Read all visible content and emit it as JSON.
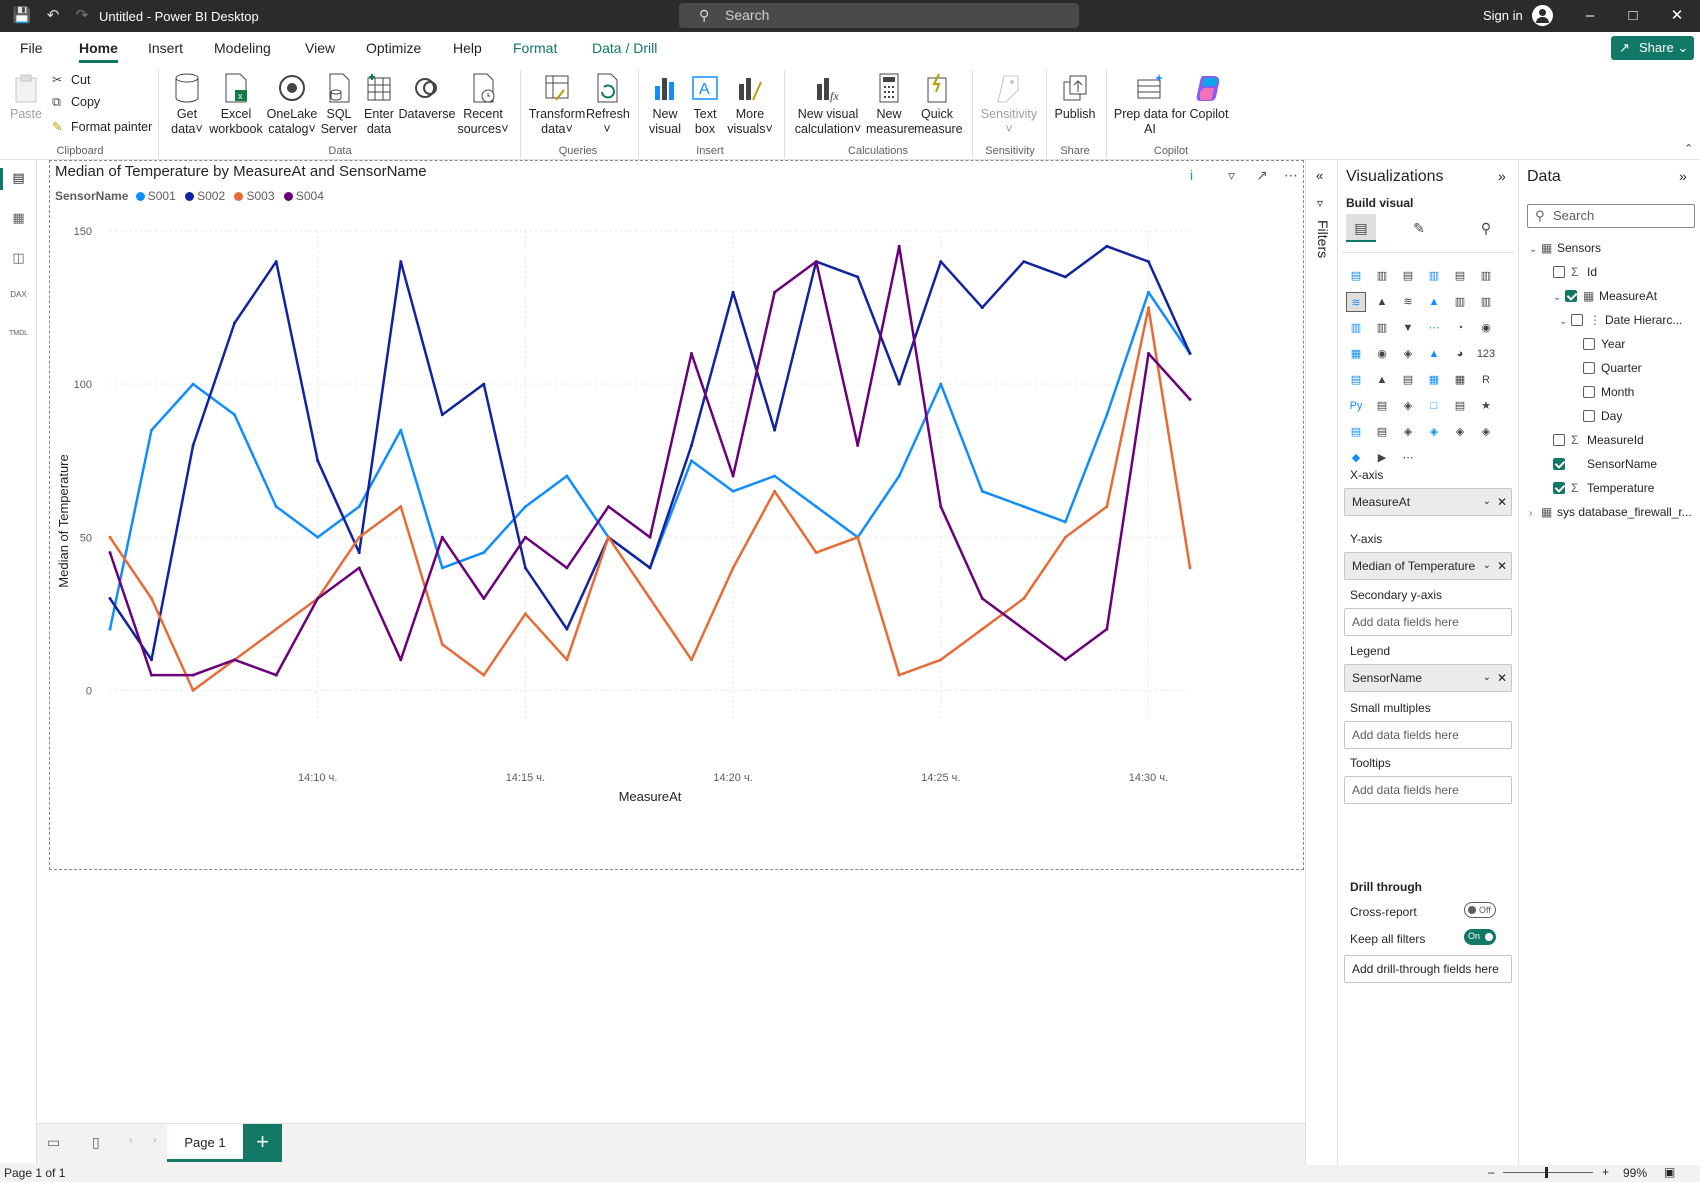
{
  "window": {
    "title": "Untitled - Power BI Desktop",
    "search_placeholder": "Search",
    "sign_in": "Sign in"
  },
  "menu": {
    "tabs": [
      "File",
      "Home",
      "Insert",
      "Modeling",
      "View",
      "Optimize",
      "Help",
      "Format",
      "Data / Drill"
    ],
    "active": "Home",
    "share": "Share"
  },
  "ribbon": {
    "clipboard": {
      "paste": "Paste",
      "cut": "Cut",
      "copy": "Copy",
      "format_painter": "Format painter",
      "label": "Clipboard"
    },
    "data": {
      "get_data": [
        "Get",
        "data"
      ],
      "excel": [
        "Excel",
        "workbook"
      ],
      "onelake": [
        "OneLake",
        "catalog"
      ],
      "sql": [
        "SQL",
        "Server"
      ],
      "enter": [
        "Enter",
        "data"
      ],
      "dataverse": "Dataverse",
      "recent": [
        "Recent",
        "sources"
      ],
      "label": "Data"
    },
    "queries": {
      "transform": [
        "Transform",
        "data"
      ],
      "refresh": "Refresh",
      "label": "Queries"
    },
    "insert": {
      "new_visual": [
        "New",
        "visual"
      ],
      "text_box": [
        "Text",
        "box"
      ],
      "more_visuals": [
        "More",
        "visuals"
      ],
      "label": "Insert"
    },
    "calculations": {
      "new_visual_calc": [
        "New visual",
        "calculation"
      ],
      "new_measure": [
        "New",
        "measure"
      ],
      "quick_measure": [
        "Quick",
        "measure"
      ],
      "label": "Calculations"
    },
    "sensitivity": {
      "sensitivity": "Sensitivity",
      "label": "Sensitivity"
    },
    "share": {
      "publish": "Publish",
      "label": "Share"
    },
    "copilot": {
      "prep": [
        "Prep data for",
        "AI"
      ],
      "copilot": "Copilot",
      "label": "Copilot"
    }
  },
  "visual": {
    "title": "Median of Temperature by MeasureAt and SensorName",
    "legend_title": "SensorName"
  },
  "chart_data": {
    "type": "line",
    "title": "Median of Temperature by MeasureAt and SensorName",
    "xlabel": "MeasureAt",
    "ylabel": "Median of Temperature",
    "x_ticks": [
      "14:10 ч.",
      "14:15 ч.",
      "14:20 ч.",
      "14:25 ч.",
      "14:30 ч."
    ],
    "y_ticks": [
      0,
      50,
      100,
      150
    ],
    "ylim": [
      -10,
      150
    ],
    "xlim": [
      "14:05 ч.",
      "14:31 ч."
    ],
    "grid": true,
    "legend_position": "top-left",
    "x": [
      "14:05",
      "14:06",
      "14:07",
      "14:08",
      "14:09",
      "14:10",
      "14:11",
      "14:12",
      "14:13",
      "14:14",
      "14:15",
      "14:16",
      "14:17",
      "14:18",
      "14:19",
      "14:20",
      "14:21",
      "14:22",
      "14:23",
      "14:24",
      "14:25",
      "14:26",
      "14:27",
      "14:28",
      "14:29",
      "14:30",
      "14:31"
    ],
    "series": [
      {
        "name": "S001",
        "color": "#118DFF",
        "values": [
          20,
          85,
          100,
          90,
          60,
          50,
          60,
          85,
          40,
          45,
          60,
          70,
          50,
          40,
          75,
          65,
          70,
          60,
          50,
          70,
          100,
          65,
          60,
          55,
          90,
          130,
          110
        ]
      },
      {
        "name": "S002",
        "color": "#12239E",
        "values": [
          30,
          10,
          80,
          120,
          140,
          75,
          45,
          140,
          90,
          100,
          40,
          20,
          50,
          40,
          80,
          130,
          85,
          140,
          135,
          100,
          140,
          125,
          140,
          135,
          145,
          140,
          110
        ]
      },
      {
        "name": "S003",
        "color": "#E66C37",
        "values": [
          50,
          30,
          0,
          10,
          20,
          30,
          50,
          60,
          15,
          5,
          25,
          10,
          50,
          30,
          10,
          40,
          65,
          45,
          50,
          5,
          10,
          20,
          30,
          50,
          60,
          125,
          40
        ]
      },
      {
        "name": "S004",
        "color": "#6B007B",
        "values": [
          45,
          5,
          5,
          10,
          5,
          30,
          40,
          10,
          50,
          30,
          50,
          40,
          60,
          50,
          110,
          70,
          130,
          140,
          80,
          145,
          60,
          30,
          20,
          10,
          20,
          110,
          95
        ]
      }
    ]
  },
  "filters": {
    "label": "Filters"
  },
  "viz_pane": {
    "title": "Visualizations",
    "build_visual": "Build visual",
    "wells": [
      {
        "label": "X-axis",
        "value": "MeasureAt",
        "filled": true
      },
      {
        "label": "Y-axis",
        "value": "Median of Temperature",
        "filled": true
      },
      {
        "label": "Secondary y-axis",
        "value": "Add data fields here",
        "filled": false
      },
      {
        "label": "Legend",
        "value": "SensorName",
        "filled": true
      },
      {
        "label": "Small multiples",
        "value": "Add data fields here",
        "filled": false
      },
      {
        "label": "Tooltips",
        "value": "Add data fields here",
        "filled": false
      }
    ],
    "drill_through": "Drill through",
    "cross_report": "Cross-report",
    "cross_report_state": "Off",
    "keep_all_filters": "Keep all filters",
    "keep_all_filters_state": "On",
    "add_drill": "Add drill-through fields here"
  },
  "data_pane": {
    "title": "Data",
    "search_placeholder": "Search",
    "tree": [
      {
        "label": "Sensors",
        "level": 0,
        "type": "table",
        "expanded": true
      },
      {
        "label": "Id",
        "level": 1,
        "type": "sigma",
        "checked": false
      },
      {
        "label": "MeasureAt",
        "level": 1,
        "type": "calendar",
        "checked": true,
        "expanded": true
      },
      {
        "label": "Date Hierarc...",
        "level": 2,
        "type": "hierarchy",
        "checked": false,
        "expanded": true
      },
      {
        "label": "Year",
        "level": 3,
        "checked": false
      },
      {
        "label": "Quarter",
        "level": 3,
        "checked": false
      },
      {
        "label": "Month",
        "level": 3,
        "checked": false
      },
      {
        "label": "Day",
        "level": 3,
        "checked": false
      },
      {
        "label": "MeasureId",
        "level": 1,
        "type": "sigma",
        "checked": false
      },
      {
        "label": "SensorName",
        "level": 1,
        "type": "none",
        "checked": true
      },
      {
        "label": "Temperature",
        "level": 1,
        "type": "sigma",
        "checked": true
      },
      {
        "label": "sys database_firewall_r...",
        "level": 0,
        "type": "table",
        "expanded": false
      }
    ]
  },
  "pages": {
    "tabs": [
      "Page 1"
    ],
    "active": "Page 1"
  },
  "status": {
    "page_info": "Page 1 of 1",
    "zoom": "99%"
  }
}
